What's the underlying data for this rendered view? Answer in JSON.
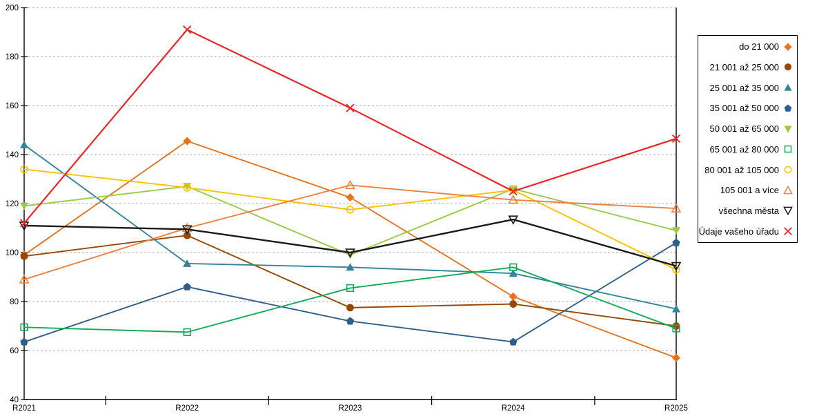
{
  "chart_data": {
    "type": "line",
    "title": "",
    "categories": [
      "R2021",
      "R2022",
      "R2023",
      "R2024",
      "R2025"
    ],
    "series": [
      {
        "name": "do 21 000",
        "color": "#E8731C",
        "marker": "diamond",
        "marker_style": "filled",
        "values": [
          99,
          145.5,
          122.5,
          82,
          57
        ]
      },
      {
        "name": "21 001 až 25 000",
        "color": "#974706",
        "marker": "circle",
        "marker_style": "filled",
        "values": [
          98.5,
          107,
          77.5,
          79,
          70
        ]
      },
      {
        "name": "25 001 až 35 000",
        "color": "#31849B",
        "marker": "triangle-up",
        "marker_style": "filled",
        "values": [
          144,
          95.5,
          94,
          91.5,
          77
        ]
      },
      {
        "name": "35 001 až 50 000",
        "color": "#2E5E8C",
        "marker": "pentagon",
        "marker_style": "filled",
        "values": [
          63.5,
          86,
          72,
          63.5,
          104
        ]
      },
      {
        "name": "50 001 až 65 000",
        "color": "#99CC44",
        "marker": "triangle-down",
        "marker_style": "filled",
        "values": [
          119,
          127,
          99,
          126,
          109
        ]
      },
      {
        "name": "65 001 až 80 000",
        "color": "#0FAC58",
        "marker": "square",
        "marker_style": "open",
        "values": [
          69.5,
          67.5,
          85.5,
          94,
          69
        ]
      },
      {
        "name": "80 001 až 105 000",
        "color": "#FFC000",
        "marker": "circle",
        "marker_style": "open",
        "values": [
          134,
          126.5,
          117.5,
          125.5,
          93
        ]
      },
      {
        "name": "105 001 a více",
        "color": "#F0813C",
        "marker": "triangle-up",
        "marker_style": "open",
        "values": [
          89,
          110,
          127.5,
          121.5,
          118
        ]
      },
      {
        "name": "všechna města",
        "color": "#1A1A1A",
        "marker": "triangle-down",
        "marker_style": "open",
        "values": [
          111,
          109.5,
          100,
          113.5,
          94.5
        ],
        "line_width": 2.4
      },
      {
        "name": "Údaje vašeho úřadu",
        "color": "#EE2324",
        "marker": "x",
        "marker_style": "open",
        "values": [
          112,
          191,
          159,
          125,
          146.5
        ],
        "line_width": 2.2
      }
    ],
    "xlabel": "",
    "ylabel": "",
    "ylim": [
      40,
      200
    ],
    "yticks": [
      40,
      60,
      80,
      100,
      120,
      140,
      160,
      180,
      200
    ],
    "grid": "horizontal-dashed",
    "legend_position": "right"
  }
}
